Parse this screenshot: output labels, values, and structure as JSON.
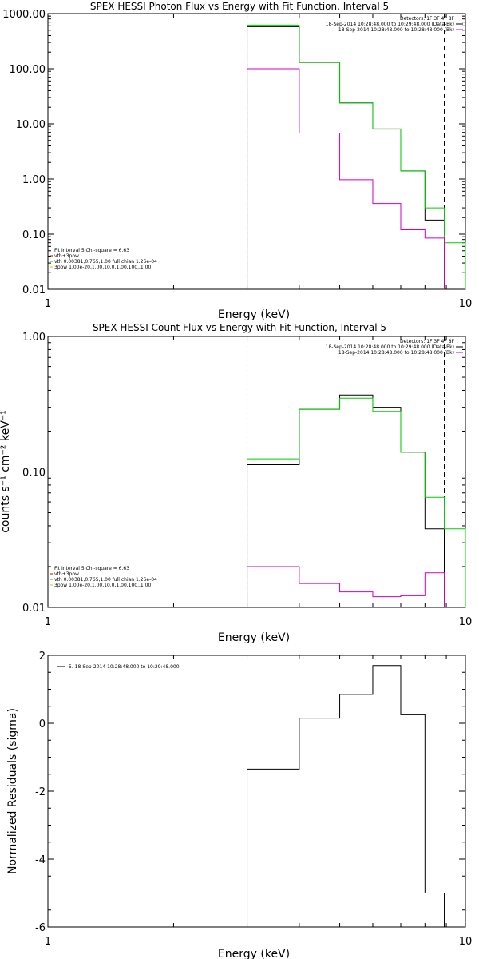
{
  "chart_data": [
    {
      "type": "line",
      "title": "SPEX HESSI Photon Flux vs Energy with Fit Function, Interval 5",
      "xlabel": "Energy (keV)",
      "ylabel": "",
      "xscale": "log",
      "yscale": "log",
      "xlim": [
        1,
        10
      ],
      "ylim": [
        0.01,
        1000
      ],
      "x_ticks": [
        "1",
        "10"
      ],
      "y_ticks": [
        "0.01",
        "0.10",
        "1.00",
        "10.00",
        "100.00",
        "1000.00"
      ],
      "legend_top_right": [
        {
          "text": "Detectors: 1F 3F 4F 8F",
          "color": "#000000"
        },
        {
          "text": "18-Sep-2014 10:28:48.000 to 10:29:48.000 (Data-Bk)",
          "color": "#000000"
        },
        {
          "text": "18-Sep-2014 10:28:48.000 to 10:28:48.000 (Bk)",
          "color": "#cc00cc"
        }
      ],
      "legend_bottom_left": [
        {
          "text": "Fit Interval 5   Chi-square = 6.63",
          "color": "#000000"
        },
        {
          "text": "vth+3pow",
          "color": "#cc0000"
        },
        {
          "text": "vth 0.00381,0.765,1.00  full chian 1.26e-04",
          "color": "#00cc00"
        },
        {
          "text": "3pow 1.00e-20,1.00,10.0,1.00,100.,1.00",
          "color": "#cccc00"
        }
      ],
      "vlines": [
        {
          "x": 3.0,
          "style": "dotted"
        },
        {
          "x": 8.9,
          "style": "dashed"
        }
      ],
      "bin_edges": [
        3.0,
        4.0,
        5.0,
        6.0,
        7.0,
        8.0,
        8.9,
        10.0
      ],
      "series": [
        {
          "color": "#000000",
          "values": [
            580,
            130,
            24,
            8.1,
            1.4,
            0.18,
            null
          ]
        },
        {
          "color": "#00cc00",
          "values": [
            620,
            130,
            24,
            8.0,
            1.4,
            0.3,
            0.07
          ]
        },
        {
          "color": "#cc00cc",
          "values": [
            100,
            6.8,
            0.97,
            0.36,
            0.12,
            0.085,
            null
          ]
        }
      ]
    },
    {
      "type": "line",
      "title": "SPEX HESSI Count Flux vs Energy with Fit Function, Interval 5",
      "xlabel": "Energy (keV)",
      "ylabel": "counts s⁻¹ cm⁻² keV⁻¹",
      "xscale": "log",
      "yscale": "log",
      "xlim": [
        1,
        10
      ],
      "ylim": [
        0.01,
        1.0
      ],
      "x_ticks": [
        "1",
        "10"
      ],
      "y_ticks": [
        "0.01",
        "0.10",
        "1.00"
      ],
      "legend_top_right": [
        {
          "text": "Detectors: 1F 3F 4F 8F",
          "color": "#000000"
        },
        {
          "text": "18-Sep-2014 10:28:48.000 to 10:29:48.000 (Data-Bk)",
          "color": "#000000"
        },
        {
          "text": "18-Sep-2014 10:28:48.000 to 10:28:48.000 (Bk)",
          "color": "#cc00cc"
        }
      ],
      "legend_bottom_left": [
        {
          "text": "Fit Interval 5   Chi-square = 6.63",
          "color": "#000000"
        },
        {
          "text": "vth+3pow",
          "color": "#cc0000"
        },
        {
          "text": "vth 0.00381,0.765,1.00  full chian 1.26e-04",
          "color": "#00cc00"
        },
        {
          "text": "3pow 1.00e-20,1.00,10.0,1.00,100.,1.00",
          "color": "#cccc00"
        }
      ],
      "vlines": [
        {
          "x": 3.0,
          "style": "dotted"
        },
        {
          "x": 8.9,
          "style": "dashed"
        }
      ],
      "bin_edges": [
        3.0,
        4.0,
        5.0,
        6.0,
        7.0,
        8.0,
        8.9,
        10.0
      ],
      "series": [
        {
          "color": "#000000",
          "values": [
            0.113,
            0.29,
            0.37,
            0.3,
            0.14,
            0.038,
            null
          ]
        },
        {
          "color": "#00cc00",
          "values": [
            0.125,
            0.29,
            0.35,
            0.28,
            0.14,
            0.065,
            0.038
          ]
        },
        {
          "color": "#cc00cc",
          "values": [
            0.02,
            0.015,
            0.013,
            0.012,
            0.0122,
            0.018,
            null
          ]
        }
      ]
    },
    {
      "type": "line",
      "title": "",
      "xlabel": "Energy (keV)",
      "ylabel": "Normalized Residuals (sigma)",
      "xscale": "log",
      "yscale": "linear",
      "xlim": [
        1,
        10
      ],
      "ylim": [
        -6,
        2
      ],
      "x_ticks": [
        "1",
        "10"
      ],
      "y_ticks": [
        "-6",
        "-4",
        "-2",
        "0",
        "2"
      ],
      "legend_top_left": [
        {
          "text": "5. 18-Sep-2014 10:28:48.000 to 10:29:48.000",
          "color": "#000000"
        }
      ],
      "bin_edges": [
        3.0,
        4.0,
        5.0,
        6.0,
        7.0,
        8.0,
        8.9
      ],
      "series": [
        {
          "color": "#000000",
          "values": [
            -1.35,
            0.15,
            0.85,
            1.7,
            0.25,
            -5.0
          ]
        }
      ]
    }
  ]
}
